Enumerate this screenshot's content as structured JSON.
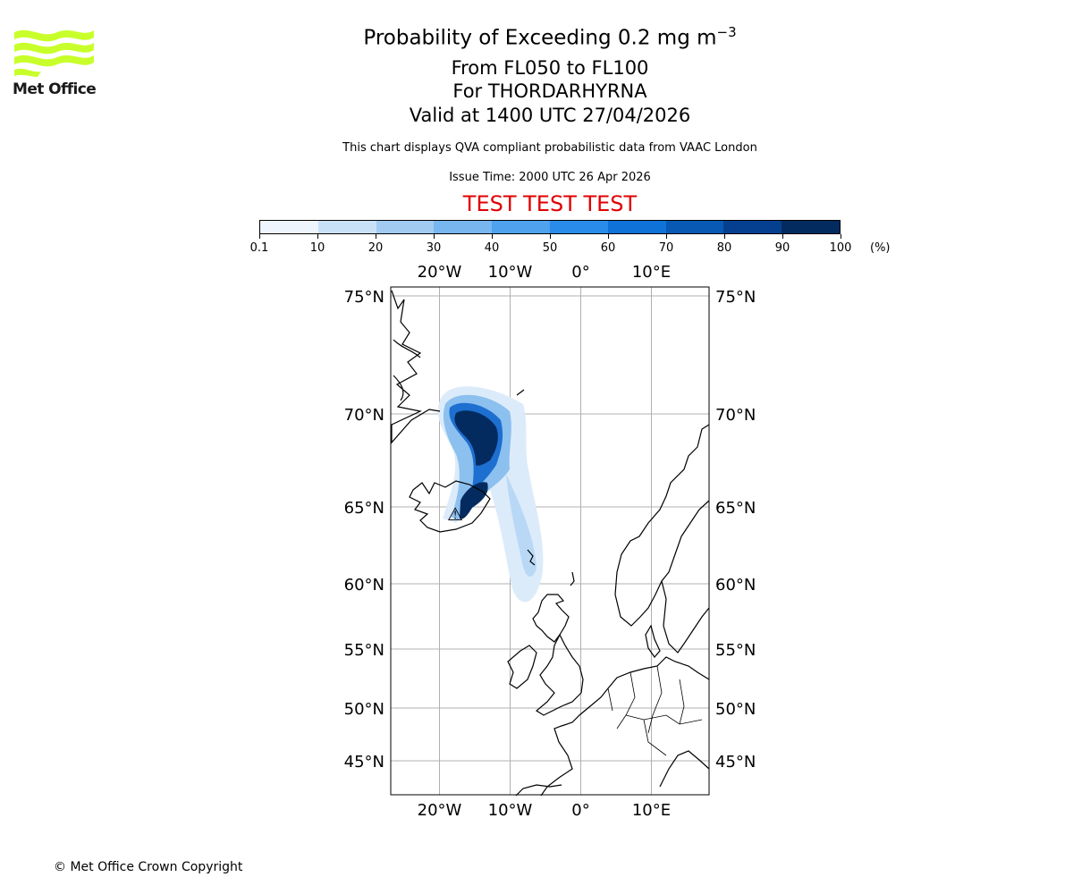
{
  "logo": {
    "text": "Met Office",
    "color": "#c8ff2a"
  },
  "title": {
    "line1_main": "Probability of Exceeding 0.2 mg m",
    "line1_exp": "−3",
    "line2": "From FL050 to FL100",
    "line3": "For THORDARHYRNA",
    "line4": "Valid at 1400 UTC 27/04/2026"
  },
  "subtitle": "This chart displays QVA compliant probabilistic data from VAAC London",
  "issue_time": "Issue Time: 2000 UTC 26 Apr 2026",
  "test_banner": "TEST TEST TEST",
  "colorbar": {
    "ticks": [
      "0.1",
      "10",
      "20",
      "30",
      "40",
      "50",
      "60",
      "70",
      "80",
      "90",
      "100"
    ],
    "unit": "(%)",
    "colors": [
      "#eef5fd",
      "#c9e1f6",
      "#a1cbf1",
      "#77b6ef",
      "#4ea2ee",
      "#2a8cea",
      "#0f72d8",
      "#0759b3",
      "#054090",
      "#032b60"
    ]
  },
  "map": {
    "lon_labels": [
      "20°W",
      "10°W",
      "0°",
      "10°E"
    ],
    "lat_labels": [
      "75°N",
      "70°N",
      "65°N",
      "60°N",
      "55°N",
      "50°N",
      "45°N"
    ],
    "lon_values": [
      -20,
      -10,
      0,
      10
    ],
    "lat_values": [
      75,
      70,
      65,
      60,
      55,
      50,
      45
    ],
    "volcano_marker": "⚠",
    "grid_color": "#b0b0b0"
  },
  "copyright": "© Met Office Crown Copyright"
}
